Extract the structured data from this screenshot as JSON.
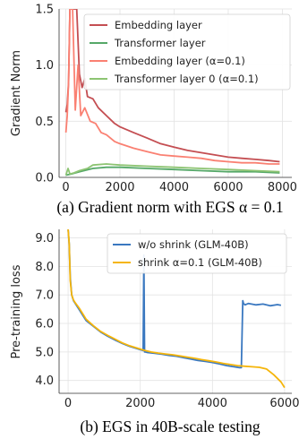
{
  "chart_data": [
    {
      "type": "line",
      "ylabel": "Gradient Norm",
      "caption": "(a) Gradient norm with EGS α = 0.1",
      "xlim": [
        -250,
        8350
      ],
      "ylim": [
        0,
        1.5
      ],
      "xticks": [
        0,
        2000,
        4000,
        6000,
        8000
      ],
      "xtick_labels": [
        "0",
        "2000",
        "4000",
        "6000",
        "8000"
      ],
      "yticks": [
        0.0,
        0.5,
        1.0,
        1.5
      ],
      "ytick_labels": [
        "0.0",
        "0.5",
        "1.0",
        "1.5"
      ],
      "grid": true,
      "legend_position": "top-right",
      "series": [
        {
          "name": "Embedding layer",
          "color": "#c44e52",
          "x": [
            0,
            50,
            100,
            150,
            200,
            300,
            400,
            500,
            600,
            700,
            800,
            1000,
            1200,
            1500,
            1800,
            2000,
            2500,
            3000,
            3500,
            4000,
            4500,
            5000,
            5500,
            6000,
            6500,
            7000,
            7500,
            7900
          ],
          "y": [
            0.58,
            0.65,
            0.85,
            1.5,
            1.5,
            1.5,
            1.5,
            0.92,
            0.8,
            0.88,
            0.72,
            0.7,
            0.62,
            0.55,
            0.48,
            0.45,
            0.4,
            0.35,
            0.3,
            0.27,
            0.24,
            0.22,
            0.2,
            0.18,
            0.17,
            0.16,
            0.15,
            0.14
          ]
        },
        {
          "name": "Transformer layer",
          "color": "#55a868",
          "x": [
            0,
            200,
            500,
            1000,
            1500,
            2000,
            3000,
            4000,
            5000,
            6000,
            7000,
            7900
          ],
          "y": [
            0.02,
            0.03,
            0.05,
            0.08,
            0.09,
            0.09,
            0.08,
            0.07,
            0.06,
            0.05,
            0.05,
            0.04
          ]
        },
        {
          "name": "Embedding layer (α=0.1)",
          "color": "#fa8072",
          "x": [
            0,
            50,
            100,
            150,
            250,
            350,
            450,
            550,
            700,
            900,
            1100,
            1300,
            1500,
            1800,
            2000,
            2500,
            3000,
            3500,
            4000,
            4500,
            5000,
            5500,
            6000,
            6500,
            7000,
            7500,
            7900
          ],
          "y": [
            0.4,
            0.55,
            0.85,
            1.5,
            1.5,
            0.6,
            1.0,
            0.55,
            0.62,
            0.5,
            0.48,
            0.4,
            0.38,
            0.32,
            0.3,
            0.26,
            0.23,
            0.2,
            0.19,
            0.18,
            0.17,
            0.15,
            0.14,
            0.13,
            0.13,
            0.12,
            0.12
          ]
        },
        {
          "name": "Transformer layer 0 (α=0.1)",
          "color": "#8dc472",
          "x": [
            0,
            80,
            150,
            300,
            500,
            800,
            1000,
            1500,
            2000,
            3000,
            4000,
            5000,
            6000,
            7000,
            7900
          ],
          "y": [
            0.02,
            0.08,
            0.03,
            0.04,
            0.06,
            0.08,
            0.11,
            0.12,
            0.11,
            0.1,
            0.09,
            0.08,
            0.07,
            0.06,
            0.05
          ]
        }
      ]
    },
    {
      "type": "line",
      "ylabel": "Pre-training loss",
      "caption": "(b) EGS in 40B-scale testing",
      "xlim": [
        -250,
        6200
      ],
      "ylim": [
        3.55,
        9.3
      ],
      "xticks": [
        0,
        2000,
        4000,
        6000
      ],
      "xtick_labels": [
        "0",
        "2000",
        "4000",
        "6000"
      ],
      "yticks": [
        4.0,
        5.0,
        6.0,
        7.0,
        8.0,
        9.0
      ],
      "ytick_labels": [
        "4.0",
        "5.0",
        "6.0",
        "7.0",
        "8.0",
        "9.0"
      ],
      "grid": true,
      "legend_position": "top-right",
      "series": [
        {
          "name": "w/o shrink (GLM-40B)",
          "color": "#3a78c0",
          "x": [
            0,
            30,
            60,
            100,
            150,
            200,
            300,
            400,
            500,
            700,
            900,
            1100,
            1300,
            1500,
            1700,
            1900,
            2080,
            2100,
            2120,
            2140,
            2200,
            2400,
            2600,
            2800,
            3000,
            3200,
            3400,
            3600,
            3800,
            4000,
            4200,
            4400,
            4600,
            4750,
            4800,
            4840,
            4860,
            4900,
            5000,
            5200,
            5400,
            5600,
            5800,
            5900
          ],
          "y": [
            9.3,
            8.8,
            7.6,
            7.0,
            6.8,
            6.7,
            6.5,
            6.3,
            6.1,
            5.9,
            5.7,
            5.55,
            5.42,
            5.3,
            5.2,
            5.12,
            5.05,
            8.4,
            5.0,
            5.0,
            4.98,
            4.95,
            4.92,
            4.88,
            4.85,
            4.8,
            4.75,
            4.7,
            4.67,
            4.63,
            4.58,
            4.52,
            4.48,
            4.45,
            4.45,
            6.8,
            6.7,
            6.65,
            6.7,
            6.65,
            6.68,
            6.62,
            6.66,
            6.64
          ]
        },
        {
          "name": "shrink α=0.1 (GLM-40B)",
          "color": "#f5b50a",
          "x": [
            0,
            30,
            60,
            100,
            150,
            200,
            300,
            400,
            500,
            700,
            900,
            1100,
            1300,
            1500,
            1700,
            1900,
            2100,
            2300,
            2500,
            2700,
            2900,
            3100,
            3300,
            3500,
            3700,
            3900,
            4100,
            4300,
            4500,
            4700,
            4900,
            5100,
            5300,
            5500,
            5700,
            5900,
            6000
          ],
          "y": [
            9.3,
            8.8,
            7.5,
            7.0,
            6.82,
            6.72,
            6.55,
            6.35,
            6.15,
            5.92,
            5.72,
            5.58,
            5.45,
            5.32,
            5.22,
            5.14,
            5.06,
            5.0,
            4.96,
            4.93,
            4.9,
            4.86,
            4.82,
            4.78,
            4.73,
            4.69,
            4.65,
            4.6,
            4.56,
            4.52,
            4.5,
            4.48,
            4.46,
            4.4,
            4.2,
            3.95,
            3.75
          ]
        }
      ]
    }
  ]
}
